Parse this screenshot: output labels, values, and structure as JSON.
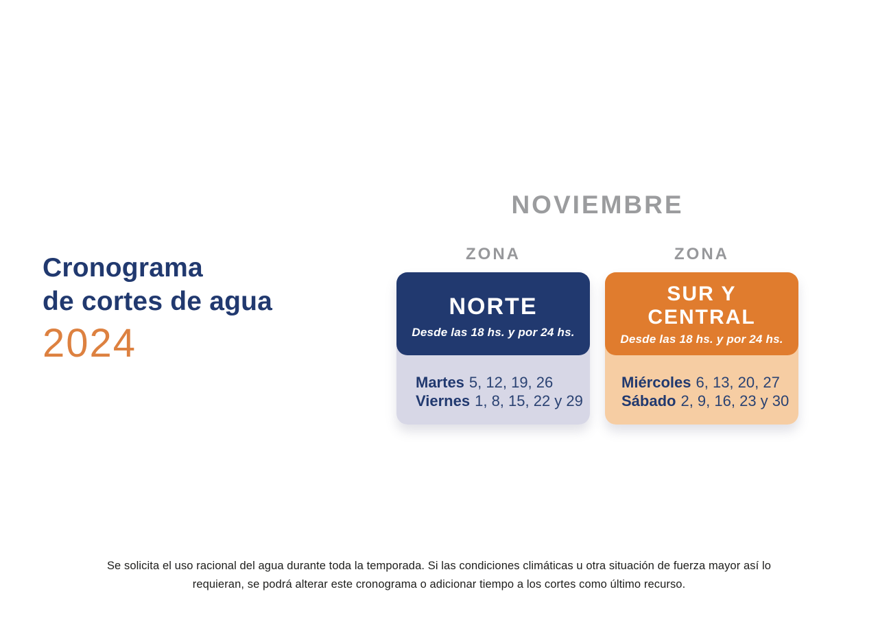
{
  "page": {
    "title_line1": "Cronograma",
    "title_line2": "de cortes de agua",
    "year": "2024",
    "month": "NOVIEMBRE"
  },
  "zones": [
    {
      "zona_label": "ZONA",
      "name": "NORTE",
      "schedule_note": "Desde las 18 hs. y por 24 hs.",
      "days": [
        {
          "name": "Martes",
          "dates": "5, 12, 19, 26"
        },
        {
          "name": "Viernes",
          "dates": "1, 8, 15, 22 y 29"
        }
      ]
    },
    {
      "zona_label": "ZONA",
      "name": "SUR Y CENTRAL",
      "schedule_note": "Desde las 18 hs. y por 24 hs.",
      "days": [
        {
          "name": "Miércoles",
          "dates": "6, 13, 20, 27"
        },
        {
          "name": "Sábado",
          "dates": "2, 9, 16, 23 y 30"
        }
      ]
    }
  ],
  "footer": {
    "line1": "Se solicita el uso racional del agua durante toda la temporada. Si las condiciones climáticas u otra situación de fuerza mayor así lo",
    "line2": "requieran, se podrá alterar este cronograma o adicionar tiempo a los cortes como último recurso."
  },
  "colors": {
    "navy": "#21396f",
    "orange": "#e07c2e",
    "lavender": "#d7d7e6",
    "peach": "#f6cda3",
    "gray-label": "#97989b",
    "text-dark": "#1d1d1b",
    "year-orange": "#dd8140"
  }
}
